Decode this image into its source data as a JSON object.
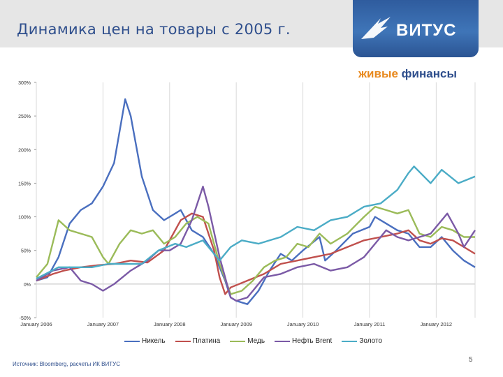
{
  "slide": {
    "title": "Динамика цен на товары с 2005 г.",
    "source": "Источник: Bloomberg, расчеты ИК ВИТУС",
    "page_number": "5"
  },
  "logos": {
    "vitus": "ВИТУС",
    "zhivye_part1": "живые",
    "zhivye_part2": "финансы"
  },
  "colors": {
    "title": "#2e4e8c",
    "Никель": "#4a6fbf",
    "Платина": "#c0504d",
    "Медь": "#9bbb59",
    "Нефть Brent": "#7b5aa6",
    "Золото": "#4bacc6"
  },
  "chart_data": {
    "type": "line",
    "title": "",
    "xlabel": "",
    "ylabel": "",
    "ylim": [
      -50,
      300
    ],
    "xlim": [
      "2006-01",
      "2012-08"
    ],
    "y_ticks": [
      "300%",
      "250%",
      "200%",
      "150%",
      "100%",
      "50%",
      "0%",
      "-50%"
    ],
    "x_ticks": [
      "January 2006",
      "January 2007",
      "January 2008",
      "January 2009",
      "January 2010",
      "January 2011",
      "January 2012"
    ],
    "grid": "vertical",
    "legend": "bottom",
    "series": [
      {
        "name": "Никель",
        "points": [
          [
            "2006-01",
            5
          ],
          [
            "2006-03",
            10
          ],
          [
            "2006-05",
            40
          ],
          [
            "2006-07",
            90
          ],
          [
            "2006-09",
            110
          ],
          [
            "2006-11",
            120
          ],
          [
            "2007-01",
            145
          ],
          [
            "2007-03",
            180
          ],
          [
            "2007-05",
            275
          ],
          [
            "2007-06",
            250
          ],
          [
            "2007-08",
            160
          ],
          [
            "2007-10",
            110
          ],
          [
            "2007-12",
            95
          ],
          [
            "2008-01",
            100
          ],
          [
            "2008-03",
            110
          ],
          [
            "2008-05",
            80
          ],
          [
            "2008-07",
            70
          ],
          [
            "2008-09",
            45
          ],
          [
            "2008-11",
            5
          ],
          [
            "2008-12",
            -20
          ],
          [
            "2009-01",
            -25
          ],
          [
            "2009-03",
            -30
          ],
          [
            "2009-05",
            -10
          ],
          [
            "2009-07",
            20
          ],
          [
            "2009-09",
            45
          ],
          [
            "2009-11",
            35
          ],
          [
            "2010-01",
            50
          ],
          [
            "2010-04",
            70
          ],
          [
            "2010-05",
            35
          ],
          [
            "2010-07",
            50
          ],
          [
            "2010-10",
            75
          ],
          [
            "2011-01",
            85
          ],
          [
            "2011-02",
            100
          ],
          [
            "2011-04",
            90
          ],
          [
            "2011-06",
            80
          ],
          [
            "2011-08",
            75
          ],
          [
            "2011-10",
            55
          ],
          [
            "2011-12",
            55
          ],
          [
            "2012-02",
            70
          ],
          [
            "2012-04",
            50
          ],
          [
            "2012-06",
            35
          ],
          [
            "2012-08",
            25
          ]
        ]
      },
      {
        "name": "Платина",
        "points": [
          [
            "2006-01",
            5
          ],
          [
            "2006-04",
            15
          ],
          [
            "2006-06",
            20
          ],
          [
            "2006-09",
            25
          ],
          [
            "2006-12",
            28
          ],
          [
            "2007-03",
            30
          ],
          [
            "2007-06",
            35
          ],
          [
            "2007-09",
            32
          ],
          [
            "2007-12",
            50
          ],
          [
            "2008-03",
            95
          ],
          [
            "2008-05",
            105
          ],
          [
            "2008-07",
            100
          ],
          [
            "2008-09",
            50
          ],
          [
            "2008-10",
            10
          ],
          [
            "2008-11",
            -15
          ],
          [
            "2008-12",
            -5
          ],
          [
            "2009-03",
            5
          ],
          [
            "2009-06",
            15
          ],
          [
            "2009-09",
            30
          ],
          [
            "2009-12",
            35
          ],
          [
            "2010-03",
            40
          ],
          [
            "2010-06",
            45
          ],
          [
            "2010-09",
            55
          ],
          [
            "2010-12",
            65
          ],
          [
            "2011-03",
            70
          ],
          [
            "2011-06",
            75
          ],
          [
            "2011-08",
            80
          ],
          [
            "2011-10",
            65
          ],
          [
            "2011-12",
            60
          ],
          [
            "2012-02",
            68
          ],
          [
            "2012-04",
            65
          ],
          [
            "2012-06",
            55
          ],
          [
            "2012-08",
            45
          ]
        ]
      },
      {
        "name": "Медь",
        "points": [
          [
            "2006-01",
            10
          ],
          [
            "2006-03",
            30
          ],
          [
            "2006-05",
            95
          ],
          [
            "2006-07",
            80
          ],
          [
            "2006-09",
            75
          ],
          [
            "2006-11",
            70
          ],
          [
            "2007-01",
            40
          ],
          [
            "2007-02",
            30
          ],
          [
            "2007-04",
            60
          ],
          [
            "2007-06",
            80
          ],
          [
            "2007-08",
            75
          ],
          [
            "2007-10",
            80
          ],
          [
            "2007-12",
            60
          ],
          [
            "2008-02",
            70
          ],
          [
            "2008-04",
            90
          ],
          [
            "2008-06",
            100
          ],
          [
            "2008-08",
            90
          ],
          [
            "2008-10",
            30
          ],
          [
            "2008-12",
            -15
          ],
          [
            "2009-02",
            -10
          ],
          [
            "2009-04",
            5
          ],
          [
            "2009-06",
            25
          ],
          [
            "2009-08",
            35
          ],
          [
            "2009-10",
            40
          ],
          [
            "2009-12",
            60
          ],
          [
            "2010-02",
            55
          ],
          [
            "2010-04",
            75
          ],
          [
            "2010-06",
            60
          ],
          [
            "2010-09",
            75
          ],
          [
            "2010-12",
            100
          ],
          [
            "2011-02",
            115
          ],
          [
            "2011-04",
            110
          ],
          [
            "2011-06",
            105
          ],
          [
            "2011-08",
            110
          ],
          [
            "2011-10",
            75
          ],
          [
            "2011-12",
            70
          ],
          [
            "2012-02",
            85
          ],
          [
            "2012-04",
            80
          ],
          [
            "2012-06",
            70
          ],
          [
            "2012-08",
            70
          ]
        ]
      },
      {
        "name": "Нефть Brent",
        "points": [
          [
            "2006-01",
            5
          ],
          [
            "2006-04",
            20
          ],
          [
            "2006-07",
            25
          ],
          [
            "2006-09",
            5
          ],
          [
            "2006-11",
            0
          ],
          [
            "2007-01",
            -10
          ],
          [
            "2007-03",
            0
          ],
          [
            "2007-06",
            20
          ],
          [
            "2007-09",
            35
          ],
          [
            "2007-11",
            50
          ],
          [
            "2008-01",
            50
          ],
          [
            "2008-03",
            60
          ],
          [
            "2008-05",
            95
          ],
          [
            "2008-07",
            145
          ],
          [
            "2008-08",
            115
          ],
          [
            "2008-10",
            40
          ],
          [
            "2008-12",
            -20
          ],
          [
            "2009-01",
            -25
          ],
          [
            "2009-03",
            -20
          ],
          [
            "2009-06",
            10
          ],
          [
            "2009-09",
            15
          ],
          [
            "2009-12",
            25
          ],
          [
            "2010-03",
            30
          ],
          [
            "2010-06",
            20
          ],
          [
            "2010-09",
            25
          ],
          [
            "2010-12",
            40
          ],
          [
            "2011-02",
            60
          ],
          [
            "2011-04",
            80
          ],
          [
            "2011-06",
            70
          ],
          [
            "2011-08",
            65
          ],
          [
            "2011-10",
            70
          ],
          [
            "2011-12",
            75
          ],
          [
            "2012-02",
            95
          ],
          [
            "2012-03",
            105
          ],
          [
            "2012-05",
            75
          ],
          [
            "2012-06",
            55
          ],
          [
            "2012-08",
            80
          ]
        ]
      },
      {
        "name": "Золото",
        "points": [
          [
            "2006-01",
            8
          ],
          [
            "2006-05",
            25
          ],
          [
            "2006-08",
            25
          ],
          [
            "2006-11",
            25
          ],
          [
            "2007-02",
            30
          ],
          [
            "2007-05",
            30
          ],
          [
            "2007-08",
            30
          ],
          [
            "2007-11",
            50
          ],
          [
            "2008-02",
            60
          ],
          [
            "2008-04",
            55
          ],
          [
            "2008-07",
            65
          ],
          [
            "2008-09",
            45
          ],
          [
            "2008-10",
            35
          ],
          [
            "2008-12",
            55
          ],
          [
            "2009-02",
            65
          ],
          [
            "2009-05",
            60
          ],
          [
            "2009-09",
            70
          ],
          [
            "2009-12",
            85
          ],
          [
            "2010-03",
            80
          ],
          [
            "2010-06",
            95
          ],
          [
            "2010-09",
            100
          ],
          [
            "2010-12",
            115
          ],
          [
            "2011-03",
            120
          ],
          [
            "2011-06",
            140
          ],
          [
            "2011-08",
            165
          ],
          [
            "2011-09",
            175
          ],
          [
            "2011-12",
            150
          ],
          [
            "2012-02",
            170
          ],
          [
            "2012-05",
            150
          ],
          [
            "2012-08",
            160
          ]
        ]
      }
    ]
  }
}
